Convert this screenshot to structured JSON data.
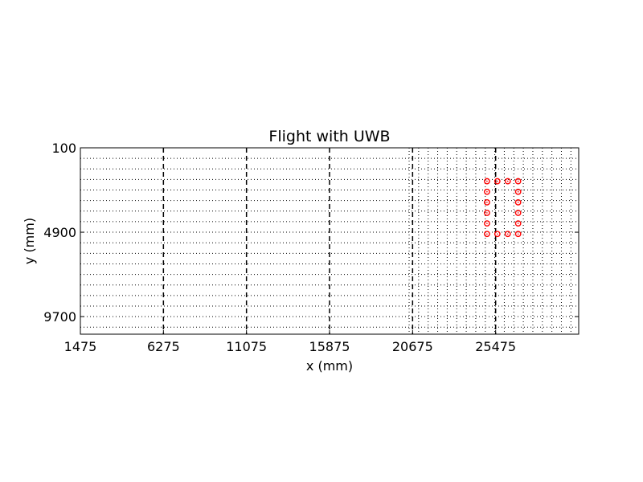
{
  "chart_data": {
    "type": "scatter",
    "title": "Flight with UWB",
    "xlabel": "x (mm)",
    "ylabel": "y (mm)",
    "xlim": [
      1475,
      30275
    ],
    "ylim": [
      10700,
      100
    ],
    "y_axis_inverted": true,
    "x_ticks": [
      1475,
      6275,
      11075,
      15875,
      20675,
      25475
    ],
    "y_ticks": [
      100,
      4900,
      9700
    ],
    "grid": {
      "dotted_rows_y": [
        100,
        700,
        1300,
        1900,
        2500,
        3100,
        3700,
        4300,
        4900,
        5500,
        6100,
        6700,
        7300,
        7900,
        8500,
        9100,
        9700,
        10300
      ],
      "dashed_columns_x": [
        6275,
        11075,
        15875,
        20675,
        25475
      ],
      "dense_dotted_region_x": [
        20475,
        30275
      ],
      "dense_dotted_step": 550
    },
    "series": [
      {
        "marker": "circle",
        "color": "#ff0000",
        "x": [
          24975,
          25575,
          26175,
          26775,
          24975,
          26775,
          24975,
          26775,
          24975,
          26775,
          24975,
          26775,
          24975,
          25575,
          26175,
          26775
        ],
        "y": [
          2000,
          2000,
          2000,
          2000,
          2600,
          2600,
          3200,
          3200,
          3800,
          3800,
          4400,
          4400,
          5000,
          5000,
          5000,
          5000
        ]
      }
    ],
    "legend": "none"
  }
}
